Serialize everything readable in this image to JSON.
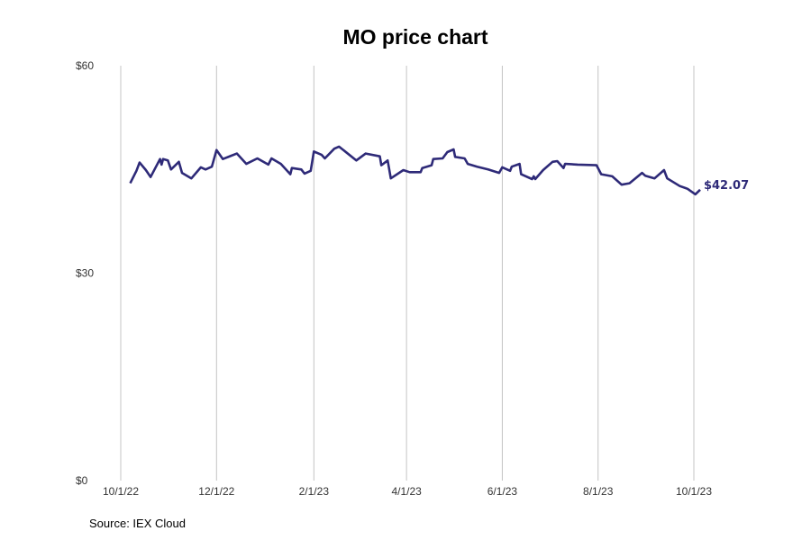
{
  "chart_data": {
    "type": "line",
    "title": "MO price chart",
    "source": "Source: IEX Cloud",
    "xlabel": "",
    "ylabel": "",
    "ylim": [
      0,
      60
    ],
    "y_ticks": [
      {
        "value": 0,
        "label": "$0"
      },
      {
        "value": 30,
        "label": "$30"
      },
      {
        "value": 60,
        "label": "$60"
      }
    ],
    "x_ticks": [
      {
        "date": "2022-10-01",
        "label": "10/1/22"
      },
      {
        "date": "2022-12-01",
        "label": "12/1/22"
      },
      {
        "date": "2023-02-01",
        "label": "2/1/23"
      },
      {
        "date": "2023-04-01",
        "label": "4/1/23"
      },
      {
        "date": "2023-06-01",
        "label": "6/1/23"
      },
      {
        "date": "2023-08-01",
        "label": "8/1/23"
      },
      {
        "date": "2023-10-01",
        "label": "10/1/23"
      }
    ],
    "grid": "vertical",
    "line_color": "#2e2a78",
    "last_label": "$42.07",
    "series": [
      {
        "points": [
          [
            "2022-10-07",
            43.0
          ],
          [
            "2022-10-11",
            44.8
          ],
          [
            "2022-10-13",
            46.0
          ],
          [
            "2022-10-17",
            44.9
          ],
          [
            "2022-10-20",
            43.9
          ],
          [
            "2022-10-26",
            46.5
          ],
          [
            "2022-10-27",
            45.7
          ],
          [
            "2022-10-28",
            46.5
          ],
          [
            "2022-10-31",
            46.3
          ],
          [
            "2022-11-02",
            45.0
          ],
          [
            "2022-11-07",
            46.1
          ],
          [
            "2022-11-09",
            44.5
          ],
          [
            "2022-11-15",
            43.7
          ],
          [
            "2022-11-21",
            45.3
          ],
          [
            "2022-11-24",
            45.0
          ],
          [
            "2022-11-28",
            45.4
          ],
          [
            "2022-12-01",
            47.8
          ],
          [
            "2022-12-05",
            46.5
          ],
          [
            "2022-12-14",
            47.3
          ],
          [
            "2022-12-20",
            45.8
          ],
          [
            "2022-12-27",
            46.6
          ],
          [
            "2023-01-03",
            45.7
          ],
          [
            "2023-01-05",
            46.6
          ],
          [
            "2023-01-11",
            45.8
          ],
          [
            "2023-01-17",
            44.3
          ],
          [
            "2023-01-18",
            45.2
          ],
          [
            "2023-01-24",
            45.0
          ],
          [
            "2023-01-26",
            44.4
          ],
          [
            "2023-01-30",
            44.8
          ],
          [
            "2023-02-01",
            47.6
          ],
          [
            "2023-02-06",
            47.1
          ],
          [
            "2023-02-08",
            46.6
          ],
          [
            "2023-02-14",
            48.0
          ],
          [
            "2023-02-17",
            48.3
          ],
          [
            "2023-02-22",
            47.4
          ],
          [
            "2023-02-28",
            46.3
          ],
          [
            "2023-03-06",
            47.3
          ],
          [
            "2023-03-15",
            46.9
          ],
          [
            "2023-03-16",
            45.6
          ],
          [
            "2023-03-20",
            46.3
          ],
          [
            "2023-03-22",
            43.7
          ],
          [
            "2023-03-30",
            44.9
          ],
          [
            "2023-04-03",
            44.6
          ],
          [
            "2023-04-10",
            44.6
          ],
          [
            "2023-04-11",
            45.2
          ],
          [
            "2023-04-17",
            45.6
          ],
          [
            "2023-04-18",
            46.5
          ],
          [
            "2023-04-24",
            46.6
          ],
          [
            "2023-04-27",
            47.5
          ],
          [
            "2023-05-01",
            47.9
          ],
          [
            "2023-05-02",
            46.8
          ],
          [
            "2023-05-08",
            46.6
          ],
          [
            "2023-05-10",
            45.8
          ],
          [
            "2023-05-16",
            45.4
          ],
          [
            "2023-05-23",
            45.0
          ],
          [
            "2023-05-30",
            44.5
          ],
          [
            "2023-06-01",
            45.3
          ],
          [
            "2023-06-06",
            44.8
          ],
          [
            "2023-06-07",
            45.4
          ],
          [
            "2023-06-12",
            45.8
          ],
          [
            "2023-06-13",
            44.3
          ],
          [
            "2023-06-20",
            43.6
          ],
          [
            "2023-06-21",
            44.0
          ],
          [
            "2023-06-22",
            43.6
          ],
          [
            "2023-06-27",
            44.9
          ],
          [
            "2023-07-03",
            46.1
          ],
          [
            "2023-07-06",
            46.2
          ],
          [
            "2023-07-10",
            45.2
          ],
          [
            "2023-07-11",
            45.8
          ],
          [
            "2023-07-19",
            45.7
          ],
          [
            "2023-07-31",
            45.6
          ],
          [
            "2023-08-03",
            44.3
          ],
          [
            "2023-08-10",
            44.0
          ],
          [
            "2023-08-16",
            42.8
          ],
          [
            "2023-08-21",
            43.0
          ],
          [
            "2023-08-29",
            44.5
          ],
          [
            "2023-08-31",
            44.1
          ],
          [
            "2023-09-06",
            43.7
          ],
          [
            "2023-09-12",
            44.9
          ],
          [
            "2023-09-14",
            43.7
          ],
          [
            "2023-09-22",
            42.6
          ],
          [
            "2023-09-27",
            42.2
          ],
          [
            "2023-10-02",
            41.4
          ],
          [
            "2023-10-05",
            42.07
          ]
        ]
      }
    ]
  }
}
